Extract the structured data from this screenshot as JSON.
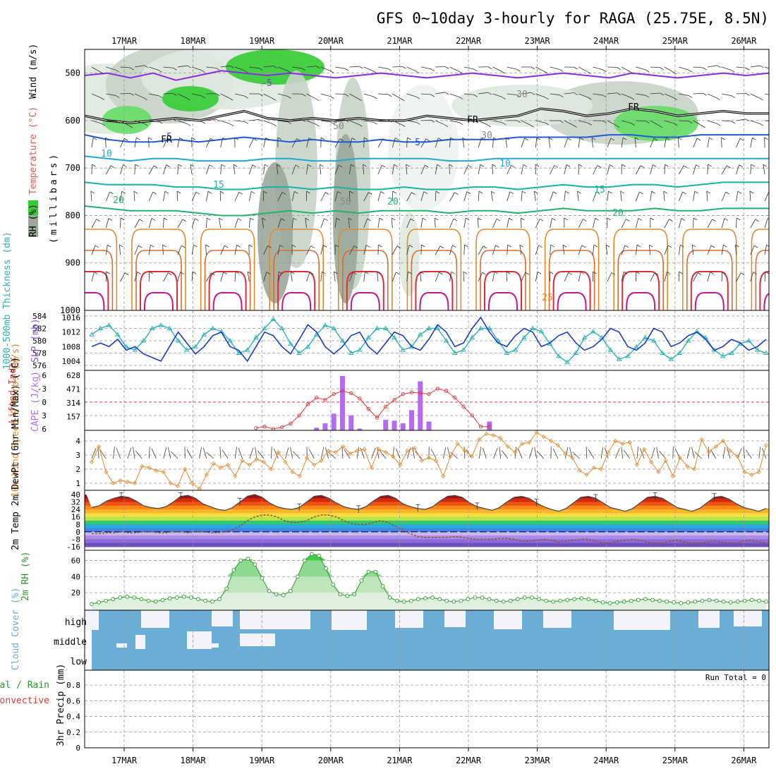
{
  "title": "GFS 0~10day 3-hourly for RAGA (25.75E, 8.5N)",
  "run_total": "Run Total = 0",
  "colors": {
    "rh_green": "#33cc33",
    "rh_gray": "#9aa89a",
    "temp_purple": "#8a2be2",
    "temp_blue": "#1f5bd6",
    "temp_cyan": "#1ea9d6",
    "temp_teal": "#17b3a3",
    "temp_green": "#22b36a",
    "temp_orange": "#e08a2c",
    "temp_red": "#e02b3a",
    "freezing": "#000000",
    "slp": "#1a3cc9",
    "thickness": "#2ab3b3",
    "cape": "#b36cf0",
    "lifted": "#e03a3a",
    "wind10m": "#e08a2c",
    "dewpt": "#8a5a3a",
    "cloud": "#6aaed6",
    "rh2m": "#2a9a2a"
  },
  "chart_data": [
    {
      "type": "line",
      "panel": "cross-section",
      "ylabel_parts": {
        "rh": "RH (%)",
        "temp": "Temperature (°C)",
        "wind": "Wind (m/s)",
        "units": "(millibars)"
      },
      "yticks": [
        "500",
        "600",
        "700",
        "800",
        "900",
        "1000"
      ],
      "ylim": [
        1000,
        450
      ],
      "contour_labels": [
        "5",
        "-5",
        "5",
        "10",
        "10",
        "15",
        "15",
        "20",
        "20",
        "20",
        "25",
        "30",
        "30",
        "50",
        "50",
        "FR",
        "FR",
        "FR"
      ],
      "series": [
        {
          "name": "-5",
          "values": [
            505,
            500,
            510,
            500,
            515,
            505,
            495,
            500,
            505,
            500,
            505,
            510,
            505,
            500,
            505,
            510,
            505,
            500,
            505,
            510,
            505,
            500,
            505,
            510,
            500,
            505,
            510,
            505,
            500,
            505,
            500
          ]
        },
        {
          "name": "FR",
          "values": [
            590,
            600,
            605,
            600,
            595,
            600,
            590,
            580,
            595,
            600,
            595,
            600,
            595,
            600,
            600,
            590,
            595,
            600,
            595,
            590,
            575,
            580,
            590,
            585,
            575,
            580,
            590,
            585,
            580,
            585,
            585
          ]
        },
        {
          "name": "5",
          "values": [
            630,
            640,
            645,
            645,
            640,
            645,
            640,
            635,
            640,
            645,
            640,
            645,
            645,
            640,
            645,
            645,
            640,
            640,
            640,
            635,
            635,
            635,
            635,
            630,
            630,
            635,
            635,
            630,
            630,
            630,
            630
          ]
        },
        {
          "name": "10",
          "values": [
            675,
            680,
            685,
            680,
            680,
            685,
            685,
            685,
            680,
            680,
            685,
            685,
            680,
            680,
            680,
            680,
            685,
            685,
            680,
            680,
            680,
            680,
            680,
            680,
            680,
            680,
            680,
            680,
            680,
            680,
            680
          ]
        },
        {
          "name": "15",
          "values": [
            730,
            735,
            735,
            735,
            740,
            740,
            745,
            745,
            740,
            740,
            745,
            740,
            745,
            745,
            740,
            745,
            745,
            740,
            740,
            745,
            740,
            735,
            740,
            740,
            735,
            735,
            740,
            735,
            730,
            730,
            730
          ]
        },
        {
          "name": "20",
          "values": [
            780,
            785,
            790,
            790,
            790,
            795,
            800,
            800,
            795,
            790,
            795,
            790,
            795,
            790,
            790,
            790,
            795,
            790,
            790,
            795,
            790,
            785,
            790,
            790,
            790,
            785,
            790,
            790,
            785,
            785,
            785
          ]
        }
      ]
    },
    {
      "type": "line",
      "panel": "slp-thickness",
      "ylabel_left": "1000-500mb Thickness (dm)",
      "ylabel_right": "SLP (mb)",
      "yticks_left": [
        "584",
        "582",
        "580",
        "578",
        "576"
      ],
      "yticks_right": [
        "1016",
        "1012",
        "1008",
        "1004"
      ],
      "series": [
        {
          "name": "SLP (mb)",
          "values": [
            1008,
            1009,
            1008,
            1010,
            1007,
            1008,
            1006,
            1005,
            1004,
            1008,
            1012,
            1009,
            1006,
            1008,
            1011,
            1012,
            1008,
            1007,
            1004,
            1008,
            1012,
            1011,
            1008,
            1006,
            1010,
            1014,
            1012,
            1008,
            1006,
            1008,
            1011,
            1012,
            1008,
            1006,
            1009,
            1012,
            1011,
            1008,
            1007,
            1010,
            1014,
            1012,
            1008,
            1009,
            1013,
            1016,
            1012,
            1009,
            1008,
            1011,
            1013,
            1012,
            1008,
            1009,
            1011,
            1012,
            1009,
            1007,
            1008,
            1010,
            1013,
            1012,
            1008,
            1007,
            1009,
            1013,
            1012,
            1008,
            1009,
            1011,
            1012,
            1010,
            1007,
            1008,
            1010,
            1009,
            1007,
            1008,
            1010
          ]
        },
        {
          "name": "1000-500mb Thickness (dm)",
          "values": [
            581.0,
            582.0,
            582.5,
            581.0,
            579.0,
            578.5,
            580.0,
            582.0,
            582.5,
            582.0,
            580.0,
            578.5,
            579.0,
            581.0,
            582.0,
            581.5,
            580.0,
            578.0,
            578.5,
            580.5,
            582.0,
            583.5,
            582.0,
            579.5,
            578.0,
            579.0,
            581.0,
            582.5,
            582.0,
            580.0,
            578.0,
            578.5,
            580.5,
            582.0,
            582.0,
            580.5,
            578.5,
            579.0,
            581.0,
            582.0,
            582.0,
            580.0,
            578.0,
            578.5,
            580.5,
            582.0,
            582.0,
            580.0,
            578.0,
            578.5,
            580.5,
            582.0,
            581.5,
            579.5,
            577.5,
            576.5,
            578.0,
            580.5,
            581.5,
            580.5,
            578.5,
            577.0,
            577.5,
            579.0,
            580.5,
            580.0,
            578.0,
            577.0,
            578.0,
            580.0,
            581.5,
            580.5,
            578.5,
            577.5,
            578.0,
            579.5,
            580.0,
            578.5,
            578.0
          ]
        }
      ]
    },
    {
      "type": "bar",
      "panel": "cape-lifted",
      "ylabel_left": "Lifted Index",
      "ylabel_right": "CAPE (J/kg)",
      "yticks_left": [
        "-6",
        "-3",
        "0",
        "3",
        "6"
      ],
      "yticks_right": [
        "628",
        "471",
        "314",
        "157"
      ],
      "cape_values": [
        0,
        0,
        0,
        0,
        0,
        0,
        0,
        0,
        0,
        0,
        0,
        0,
        0,
        0,
        0,
        0,
        0,
        0,
        0,
        0,
        0,
        0,
        0,
        0,
        0,
        0,
        30,
        80,
        190,
        620,
        170,
        20,
        0,
        0,
        120,
        110,
        80,
        230,
        560,
        100,
        0,
        0,
        0,
        0,
        0,
        0,
        100,
        0,
        0,
        0,
        0,
        0,
        0,
        0,
        0,
        0,
        0,
        0,
        0,
        0,
        0,
        0,
        0,
        0,
        0,
        0,
        0,
        0,
        0,
        0,
        0,
        0,
        0,
        0,
        0,
        0,
        0,
        0,
        0
      ],
      "lifted_values": [
        null,
        null,
        null,
        null,
        null,
        null,
        null,
        null,
        null,
        null,
        null,
        null,
        null,
        null,
        null,
        null,
        null,
        null,
        null,
        5.8,
        5.5,
        6.0,
        5.6,
        4.8,
        3.0,
        0.5,
        -1.0,
        -0.5,
        -1.8,
        -2.5,
        -2.0,
        -0.8,
        1.5,
        3.5,
        1.0,
        -0.5,
        -1.8,
        -2.2,
        -2.0,
        -1.8,
        -3.0,
        -2.5,
        -1.0,
        1.0,
        3.0,
        5.5,
        5.5,
        null,
        null,
        null,
        null,
        null,
        null,
        null,
        null,
        null,
        null,
        null,
        null,
        null,
        null,
        null,
        null,
        null,
        null,
        null,
        null,
        null,
        null,
        null,
        null,
        null,
        null,
        null,
        null,
        null,
        null,
        null,
        null
      ]
    },
    {
      "type": "line",
      "panel": "wind10m",
      "ylabel": "10m Wind Speed & Barbs (m/s)",
      "yticks": [
        "4",
        "3",
        "2",
        "1"
      ],
      "values": [
        2.5,
        3.6,
        1.8,
        1.0,
        1.2,
        1.1,
        1.0,
        2.2,
        2.1,
        1.9,
        1.8,
        1.0,
        0.8,
        2.0,
        1.0,
        0.6,
        1.6,
        2.4,
        2.1,
        2.3,
        1.5,
        2.6,
        2.3,
        2.7,
        2.5,
        2.0,
        3.2,
        2.5,
        1.8,
        1.5,
        2.8,
        2.3,
        2.6,
        3.3,
        3.2,
        3.6,
        3.1,
        3.3,
        3.4,
        2.1,
        3.4,
        3.2,
        2.9,
        2.3,
        3.3,
        3.5,
        2.6,
        2.8,
        2.6,
        1.5,
        2.9,
        3.8,
        3.3,
        2.9,
        4.1,
        4.5,
        4.4,
        4.2,
        3.6,
        3.2,
        3.8,
        3.9,
        4.6,
        4.3,
        4.0,
        3.7,
        3.1,
        2.8,
        1.9,
        1.6,
        2.1,
        2.0,
        3.2,
        4.0,
        3.8,
        3.9,
        2.3,
        3.4,
        2.5,
        1.8,
        2.6,
        1.5,
        2.8,
        2.2,
        2.0,
        4.1,
        3.2,
        3.6,
        4.0,
        3.3,
        2.9,
        1.8,
        1.6,
        1.8,
        3.7
      ]
    },
    {
      "type": "area",
      "panel": "temp-dewpt",
      "ylabel": "2m Temp 2m DewPt (6hr Min/Max) (°C)",
      "yticks": [
        "40",
        "32",
        "24",
        "16",
        "8",
        "0",
        "-8",
        "-16"
      ],
      "temp_values": [
        26,
        28,
        33,
        36,
        38,
        37,
        33,
        28,
        26,
        25,
        27,
        32,
        38,
        39,
        36,
        30,
        27,
        24,
        23,
        26,
        32,
        38,
        40,
        37,
        31,
        27,
        25,
        24,
        26,
        32,
        38,
        39,
        36,
        31,
        27,
        25,
        24,
        27,
        33,
        38,
        39,
        36,
        30,
        27,
        25,
        24,
        27,
        33,
        38,
        39,
        37,
        31,
        27,
        25,
        23,
        26,
        32,
        37,
        38,
        36,
        31,
        27,
        24,
        22,
        25,
        31,
        37,
        38,
        36,
        31,
        26,
        24,
        22,
        25,
        31,
        37,
        38,
        36,
        31,
        26,
        24,
        22,
        25,
        31,
        37,
        38,
        35,
        30,
        26,
        24,
        22,
        25
      ],
      "dewpt_values": [
        -2,
        -2,
        -1,
        -1,
        0,
        -1,
        -1,
        0,
        0,
        -1,
        -1,
        0,
        0,
        -1,
        0,
        0,
        -1,
        -1,
        0,
        2,
        6,
        12,
        16,
        18,
        18,
        16,
        12,
        10,
        10,
        12,
        16,
        18,
        18,
        16,
        12,
        9,
        8,
        8,
        10,
        12,
        10,
        6,
        2,
        -2,
        -5,
        -6,
        -6,
        -6,
        -6,
        -5,
        -6,
        -7,
        -8,
        -8,
        -8,
        -7,
        -7,
        -8,
        -10,
        -10,
        -9,
        -8,
        -9,
        -11,
        -10,
        -9,
        -8,
        -8,
        -10,
        -12,
        -12,
        -10,
        -9,
        -8,
        -9,
        -11,
        -12,
        -12,
        -10,
        -9,
        -11,
        -12,
        -12,
        -11,
        -10,
        -11,
        -12,
        -12,
        -10,
        -9,
        -11,
        -12
      ]
    },
    {
      "type": "area",
      "panel": "rh2m",
      "ylabel": "2m RH (%)",
      "yticks": [
        "60",
        "40",
        "20"
      ],
      "values": [
        6,
        8,
        10,
        12,
        14,
        15,
        14,
        12,
        10,
        9,
        11,
        13,
        14,
        15,
        14,
        12,
        10,
        9,
        12,
        25,
        48,
        60,
        62,
        55,
        38,
        22,
        18,
        17,
        22,
        40,
        60,
        68,
        66,
        50,
        30,
        18,
        16,
        18,
        35,
        46,
        46,
        28,
        14,
        10,
        9,
        10,
        12,
        13,
        14,
        12,
        10,
        9,
        10,
        12,
        14,
        14,
        12,
        10,
        9,
        10,
        12,
        14,
        14,
        12,
        10,
        9,
        10,
        11,
        12,
        13,
        12,
        10,
        8,
        7,
        8,
        9,
        10,
        11,
        12,
        11,
        10,
        9,
        8,
        7,
        8,
        9,
        10,
        11,
        10,
        9,
        8,
        9,
        10,
        11,
        10,
        9
      ]
    },
    {
      "type": "heatmap",
      "panel": "cloud-cover",
      "ylabel": "Cloud Cover (%)",
      "levels": [
        "high",
        "middle",
        "low"
      ]
    },
    {
      "type": "bar",
      "panel": "precip",
      "ylabel_parts": {
        "series1": "Total / Rain",
        "series2": "Convective",
        "units": "3hr Precip (mm)"
      },
      "yticks": [
        "0.8",
        "0.6",
        "0.4",
        "0.2",
        "0"
      ],
      "values": []
    }
  ],
  "dates": [
    "17MAR",
    "18MAR",
    "19MAR",
    "20MAR",
    "21MAR",
    "22MAR",
    "23MAR",
    "24MAR",
    "25MAR",
    "26MAR"
  ]
}
